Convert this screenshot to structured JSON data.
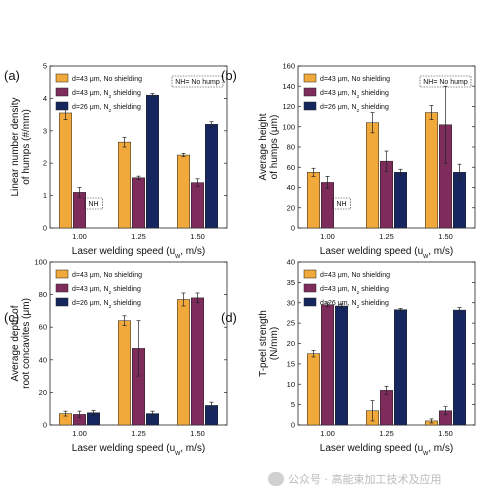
{
  "figure": {
    "watermark": "公众号 · 高能束加工技术及应用",
    "colors": {
      "no_shielding": "#F2A93B",
      "n2_43": "#7E2C5C",
      "n2_26": "#16265E"
    }
  },
  "chart_data": [
    {
      "panel": "(a)",
      "type": "bar",
      "xlabel": "Laser welding speed (u_w, m/s)",
      "ylabel": "Linear number density of humps (#/mm)",
      "ylabel_lines": [
        "Linear number density",
        "of humps (#/mm)"
      ],
      "categories": [
        "1.00",
        "1.25",
        "1.50"
      ],
      "ylim": [
        0,
        5
      ],
      "yticks": [
        0,
        1,
        2,
        3,
        4,
        5
      ],
      "legend_position": "top-left",
      "note": "NH= No hump",
      "series": [
        {
          "name": "d=43 μm, No shielding",
          "values": [
            3.55,
            2.65,
            2.25
          ],
          "errors": [
            0.2,
            0.15,
            0.05
          ]
        },
        {
          "name": "d=43 μm, N2 shielding",
          "values": [
            1.1,
            1.55,
            1.4
          ],
          "errors": [
            0.15,
            0.05,
            0.12
          ]
        },
        {
          "name": "d=26 μm, N2 shielding",
          "values": [
            null,
            4.1,
            3.2
          ],
          "errors": [
            0,
            0.05,
            0.08
          ]
        }
      ],
      "na_markers": [
        {
          "category": "1.00",
          "label": "NH"
        }
      ]
    },
    {
      "panel": "(b)",
      "type": "bar",
      "xlabel": "Laser welding speed (u_w, m/s)",
      "ylabel": "Average height of humps (μm)",
      "ylabel_lines": [
        "Average height",
        "of humps (μm)"
      ],
      "categories": [
        "1.00",
        "1.25",
        "1.50"
      ],
      "ylim": [
        0,
        160
      ],
      "yticks": [
        0,
        20,
        40,
        60,
        80,
        100,
        120,
        140,
        160
      ],
      "legend_position": "top-left",
      "note": "NH= No hump",
      "series": [
        {
          "name": "d=43 μm, No shielding",
          "values": [
            55,
            104,
            114
          ],
          "errors": [
            4,
            10,
            7
          ]
        },
        {
          "name": "d=43 μm, N2 shielding",
          "values": [
            45,
            66,
            102
          ],
          "errors": [
            6,
            10,
            38
          ]
        },
        {
          "name": "d=26 μm, N2 shielding",
          "values": [
            null,
            55,
            55
          ],
          "errors": [
            0,
            3,
            8
          ]
        }
      ],
      "na_markers": [
        {
          "category": "1.00",
          "label": "NH"
        }
      ]
    },
    {
      "panel": "(c)",
      "type": "bar",
      "xlabel": "Laser welding speed (u_w, m/s)",
      "ylabel": "Average depth of root concavites (μm)",
      "ylabel_lines": [
        "Average depth of",
        "root concavites (μm)"
      ],
      "categories": [
        "1.00",
        "1.25",
        "1.50"
      ],
      "ylim": [
        0,
        100
      ],
      "yticks": [
        0,
        20,
        40,
        60,
        80,
        100
      ],
      "legend_position": "top-left",
      "note": "",
      "series": [
        {
          "name": "d=43 μm, No shielding",
          "values": [
            7,
            64,
            77
          ],
          "errors": [
            1.5,
            3,
            4
          ]
        },
        {
          "name": "d=43 μm, N2 shielding",
          "values": [
            6.5,
            47,
            78
          ],
          "errors": [
            2,
            17,
            3
          ]
        },
        {
          "name": "d=26 μm, N2 shielding",
          "values": [
            7.5,
            7,
            12
          ],
          "errors": [
            1.5,
            1.5,
            2
          ]
        }
      ],
      "na_markers": []
    },
    {
      "panel": "(d)",
      "type": "bar",
      "xlabel": "Laser welding speed (u_w, m/s)",
      "ylabel": "T-peel strength (N/mm)",
      "ylabel_lines": [
        "T-peel strength",
        "(N/mm)"
      ],
      "categories": [
        "1.00",
        "1.25",
        "1.50"
      ],
      "ylim": [
        0,
        40
      ],
      "yticks": [
        0,
        5,
        10,
        15,
        20,
        25,
        30,
        35,
        40
      ],
      "legend_position": "top-left",
      "note": "",
      "series": [
        {
          "name": "d=43 μm, No shielding",
          "values": [
            17.5,
            3.5,
            1
          ],
          "errors": [
            0.8,
            2.5,
            0.5
          ]
        },
        {
          "name": "d=43 μm, N2 shielding",
          "values": [
            29.5,
            8.5,
            3.5
          ],
          "errors": [
            0.5,
            1,
            1
          ]
        },
        {
          "name": "d=26 μm, N2 shielding",
          "values": [
            29.2,
            28.3,
            28.2
          ],
          "errors": [
            0.5,
            0.3,
            0.6
          ]
        }
      ],
      "na_markers": []
    }
  ]
}
